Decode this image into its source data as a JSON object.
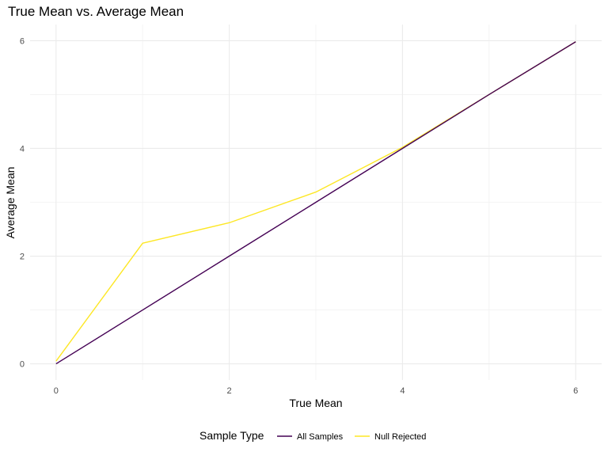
{
  "chart_data": {
    "type": "line",
    "title": "True Mean vs. Average Mean",
    "xlabel": "True Mean",
    "ylabel": "Average Mean",
    "xlim": [
      -0.3,
      6.3
    ],
    "ylim": [
      -0.3,
      6.3
    ],
    "x_ticks": [
      0,
      2,
      4,
      6
    ],
    "y_ticks": [
      0,
      2,
      4,
      6
    ],
    "x_tick_labels": [
      "0",
      "2",
      "4",
      "6"
    ],
    "y_tick_labels": [
      "0",
      "2",
      "4",
      "6"
    ],
    "grid": true,
    "legend": {
      "title": "Sample Type",
      "position": "bottom"
    },
    "x": [
      0,
      1,
      2,
      3,
      4,
      5,
      6
    ],
    "series": [
      {
        "name": "All Samples",
        "color": "#440154",
        "values": [
          0.0,
          1.0,
          2.0,
          3.0,
          4.0,
          5.0,
          5.98
        ]
      },
      {
        "name": "Null Rejected",
        "color": "#FDE725",
        "values": [
          0.05,
          2.24,
          2.62,
          3.19,
          4.02,
          5.0,
          5.98
        ]
      }
    ]
  }
}
